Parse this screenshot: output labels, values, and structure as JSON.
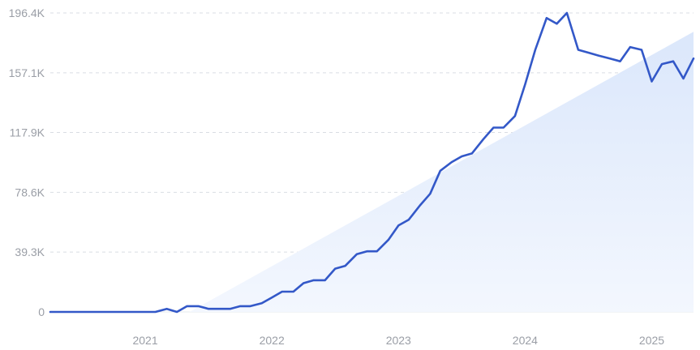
{
  "chart_data": {
    "type": "line",
    "title": "",
    "xlabel": "",
    "ylabel": "",
    "grid": true,
    "legend": "none",
    "colors": {
      "line": "#3358c8",
      "trend_fill_top": "#dbe7fb",
      "trend_fill_bottom": "#f3f7fe",
      "grid": "#d9dde3",
      "tick_text": "#9a9ea6"
    },
    "y_ticks": [
      {
        "value": 0,
        "label": "0"
      },
      {
        "value": 39300,
        "label": "39.3K"
      },
      {
        "value": 78600,
        "label": "78.6K"
      },
      {
        "value": 117900,
        "label": "117.9K"
      },
      {
        "value": 157100,
        "label": "157.1K"
      },
      {
        "value": 196400,
        "label": "196.4K"
      }
    ],
    "x_ticks": [
      {
        "value": 2021.0,
        "label": "2021"
      },
      {
        "value": 2022.0,
        "label": "2022"
      },
      {
        "value": 2023.0,
        "label": "2023"
      },
      {
        "value": 2024.0,
        "label": "2024"
      },
      {
        "value": 2025.0,
        "label": "2025"
      }
    ],
    "xlim": [
      2020.25,
      2025.33
    ],
    "ylim": [
      0,
      196400
    ],
    "trend": {
      "x": [
        2021.35,
        2025.33
      ],
      "y": [
        0,
        184000
      ]
    },
    "series": [
      {
        "x": [
          2020.25,
          2020.33,
          2020.42,
          2020.5,
          2020.58,
          2020.67,
          2020.75,
          2020.83,
          2020.92,
          2021.0,
          2021.08,
          2021.17,
          2021.25,
          2021.33,
          2021.42,
          2021.5,
          2021.58,
          2021.67,
          2021.75,
          2021.83,
          2021.92,
          2022.0,
          2022.08,
          2022.17,
          2022.25,
          2022.33,
          2022.42,
          2022.5,
          2022.58,
          2022.67,
          2022.75,
          2022.83,
          2022.92,
          2023.0,
          2023.08,
          2023.17,
          2023.25,
          2023.33,
          2023.42,
          2023.5,
          2023.58,
          2023.67,
          2023.75,
          2023.83,
          2023.92,
          2024.0,
          2024.08,
          2024.17,
          2024.25,
          2024.33,
          2024.42,
          2024.5,
          2024.58,
          2024.67,
          2024.75,
          2024.83,
          2024.92,
          2025.0,
          2025.08,
          2025.17,
          2025.25,
          2025.33
        ],
        "y": [
          0,
          0,
          0,
          0,
          0,
          0,
          0,
          0,
          0,
          0,
          0,
          2000,
          0,
          3800,
          3800,
          2000,
          2000,
          2000,
          3800,
          3800,
          5700,
          9500,
          13300,
          13300,
          18900,
          20800,
          20800,
          28400,
          30300,
          37900,
          39800,
          39800,
          47300,
          56800,
          60500,
          70000,
          77600,
          92700,
          98400,
          102200,
          104100,
          113500,
          121100,
          121100,
          128700,
          149500,
          172200,
          193100,
          189300,
          196400,
          172200,
          170300,
          168400,
          166500,
          164600,
          174000,
          172200,
          151400,
          162800,
          164600,
          153300,
          166500
        ]
      }
    ]
  }
}
